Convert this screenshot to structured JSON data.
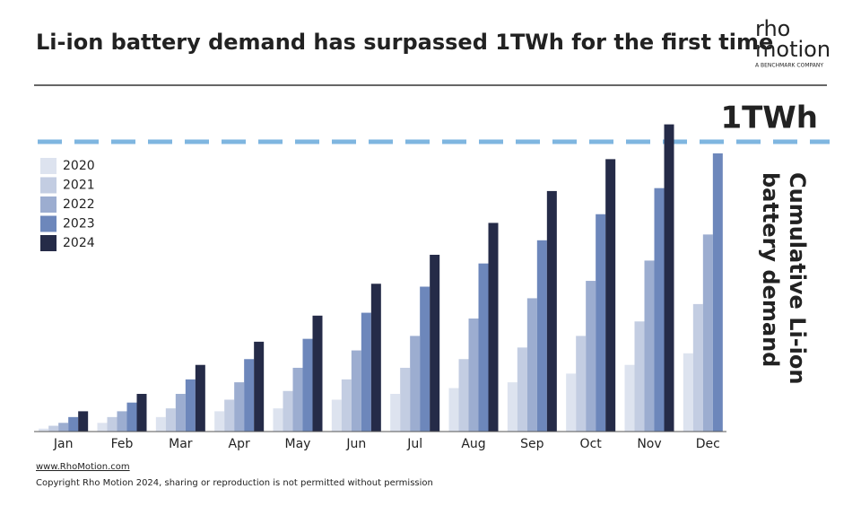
{
  "chart_data": {
    "type": "bar",
    "title": "Li-ion battery demand has surpassed 1TWh for the first time",
    "logo": {
      "line1": "rho",
      "line2": "motion",
      "tagline": "A BENCHMARK COMPANY"
    },
    "y_label": [
      "Cumulative Li-ion",
      "battery demand"
    ],
    "reference_line": {
      "value": 1,
      "label": "1TWh",
      "color": "#7fb6e0"
    },
    "categories": [
      "Jan",
      "Feb",
      "Mar",
      "Apr",
      "May",
      "Jun",
      "Jul",
      "Aug",
      "Sep",
      "Oct",
      "Nov",
      "Dec"
    ],
    "ylim": [
      0,
      1.1
    ],
    "series": [
      {
        "name": "2020",
        "color": "#dde3ef",
        "values": [
          0.01,
          0.03,
          0.05,
          0.07,
          0.08,
          0.11,
          0.13,
          0.15,
          0.17,
          0.2,
          0.23,
          0.27
        ]
      },
      {
        "name": "2021",
        "color": "#c3cde2",
        "values": [
          0.02,
          0.05,
          0.08,
          0.11,
          0.14,
          0.18,
          0.22,
          0.25,
          0.29,
          0.33,
          0.38,
          0.44
        ]
      },
      {
        "name": "2022",
        "color": "#9cadd0",
        "values": [
          0.03,
          0.07,
          0.13,
          0.17,
          0.22,
          0.28,
          0.33,
          0.39,
          0.46,
          0.52,
          0.59,
          0.68
        ]
      },
      {
        "name": "2023",
        "color": "#6d87bb",
        "values": [
          0.05,
          0.1,
          0.18,
          0.25,
          0.32,
          0.41,
          0.5,
          0.58,
          0.66,
          0.75,
          0.84,
          0.96
        ]
      },
      {
        "name": "2024",
        "color": "#252b48",
        "values": [
          0.07,
          0.13,
          0.23,
          0.31,
          0.4,
          0.51,
          0.61,
          0.72,
          0.83,
          0.94,
          1.06,
          null
        ]
      }
    ],
    "legend": "top-left",
    "footer": {
      "website": "www.RhoMotion.com",
      "copyright": "Copyright Rho Motion 2024, sharing or reproduction is not permitted without permission"
    }
  }
}
